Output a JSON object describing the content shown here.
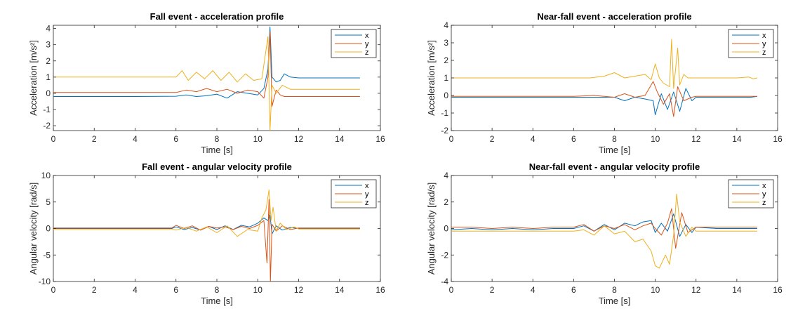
{
  "chart_data": [
    {
      "type": "line",
      "title": "Fall event - acceleration profile",
      "xlabel": "Time [s]",
      "ylabel": "Acceleration [m/s²]",
      "xlim": [
        0,
        16
      ],
      "ylim": [
        -2.3,
        4.2
      ],
      "xticks": [
        0,
        2,
        4,
        6,
        8,
        10,
        12,
        14,
        16
      ],
      "yticks": [
        -2,
        -1,
        0,
        1,
        2,
        3,
        4
      ],
      "legend": "top-right",
      "series": [
        {
          "name": "x",
          "color": "#0072BD",
          "x": [
            0,
            2,
            4,
            6,
            6.5,
            7,
            7.5,
            8,
            8.5,
            9,
            9.5,
            10,
            10.3,
            10.5,
            10.6,
            10.7,
            10.9,
            11.1,
            11.3,
            11.6,
            12,
            13,
            14,
            15
          ],
          "y": [
            -0.2,
            -0.2,
            -0.2,
            -0.18,
            -0.1,
            -0.2,
            -0.15,
            -0.05,
            -0.3,
            0.1,
            0.0,
            -0.1,
            0.3,
            1.5,
            4.1,
            1.0,
            0.7,
            0.8,
            1.2,
            1.0,
            0.95,
            0.95,
            0.95,
            0.95
          ]
        },
        {
          "name": "y",
          "color": "#D95319",
          "x": [
            0,
            2,
            4,
            6,
            6.5,
            7,
            7.5,
            8,
            8.5,
            9,
            9.5,
            10,
            10.3,
            10.5,
            10.6,
            10.7,
            10.9,
            11.1,
            11.3,
            11.6,
            12,
            13,
            14,
            15
          ],
          "y": [
            0.05,
            0.05,
            0.05,
            0.05,
            0.2,
            0.1,
            0.3,
            0.1,
            0.25,
            0.0,
            0.2,
            0.1,
            -0.3,
            1.0,
            3.8,
            -0.8,
            0.2,
            -0.1,
            -0.2,
            -0.2,
            -0.2,
            -0.2,
            -0.2,
            -0.2
          ]
        },
        {
          "name": "z",
          "color": "#EDB120",
          "x": [
            0,
            2,
            4,
            6,
            6.3,
            6.6,
            7,
            7.4,
            7.8,
            8.2,
            8.6,
            9,
            9.4,
            9.8,
            10.2,
            10.5,
            10.6,
            10.7,
            10.9,
            11.2,
            11.6,
            12,
            13,
            14,
            15
          ],
          "y": [
            1.0,
            1.0,
            1.0,
            1.0,
            1.4,
            0.8,
            1.3,
            0.9,
            1.4,
            0.8,
            1.3,
            0.7,
            1.2,
            0.8,
            0.9,
            3.5,
            -2.3,
            0.5,
            0.0,
            0.5,
            0.25,
            0.25,
            0.25,
            0.25,
            0.25
          ]
        }
      ]
    },
    {
      "type": "line",
      "title": "Near-fall event - acceleration profile",
      "xlabel": "Time [s]",
      "ylabel": "Acceleration [m/s²]",
      "xlim": [
        0,
        16
      ],
      "ylim": [
        -2,
        4
      ],
      "xticks": [
        0,
        2,
        4,
        6,
        8,
        10,
        12,
        14,
        16
      ],
      "yticks": [
        -2,
        -1,
        0,
        1,
        2,
        3,
        4
      ],
      "legend": "top-right",
      "series": [
        {
          "name": "x",
          "color": "#0072BD",
          "x": [
            0,
            1,
            2,
            4,
            6,
            7,
            8,
            8.5,
            9,
            9.5,
            9.9,
            10.0,
            10.3,
            10.6,
            10.9,
            11.2,
            11.5,
            11.8,
            12,
            13,
            14,
            14.7,
            15
          ],
          "y": [
            -0.1,
            -0.1,
            -0.1,
            -0.1,
            -0.1,
            -0.1,
            -0.1,
            -0.3,
            -0.1,
            -0.2,
            -0.3,
            -1.1,
            0.1,
            -0.8,
            0.2,
            -0.9,
            0.4,
            -0.3,
            -0.1,
            -0.1,
            -0.1,
            -0.1,
            -0.05
          ]
        },
        {
          "name": "y",
          "color": "#D95319",
          "x": [
            0,
            1,
            2,
            4,
            6,
            7,
            8,
            8.5,
            9,
            9.5,
            9.9,
            10.1,
            10.4,
            10.7,
            10.9,
            11.1,
            11.4,
            11.8,
            12,
            13,
            14,
            14.7,
            15
          ],
          "y": [
            -0.05,
            -0.05,
            -0.05,
            -0.05,
            -0.05,
            0.0,
            -0.1,
            0.1,
            -0.1,
            0.0,
            0.8,
            0.2,
            -0.5,
            0.1,
            -1.2,
            0.5,
            -0.3,
            -0.1,
            -0.05,
            -0.05,
            -0.05,
            -0.05,
            -0.05
          ]
        },
        {
          "name": "z",
          "color": "#EDB120",
          "x": [
            0,
            2,
            4,
            6,
            6.8,
            7.5,
            8,
            8.5,
            9,
            9.5,
            9.8,
            10.0,
            10.2,
            10.4,
            10.7,
            10.8,
            10.9,
            11.1,
            11.2,
            11.4,
            11.6,
            12,
            13,
            14,
            14.6,
            14.8,
            15
          ],
          "y": [
            1.0,
            1.0,
            1.0,
            1.0,
            1.0,
            1.1,
            1.3,
            1.0,
            1.1,
            1.2,
            0.9,
            1.8,
            1.0,
            0.7,
            0.5,
            3.2,
            0.4,
            2.7,
            0.6,
            1.2,
            1.0,
            1.0,
            1.0,
            1.0,
            1.05,
            0.95,
            1.0
          ]
        }
      ]
    },
    {
      "type": "line",
      "title": "Fall event - angular velocity profile",
      "xlabel": "Time [s]",
      "ylabel": "Angular velocity [rad/s]",
      "xlim": [
        0,
        16
      ],
      "ylim": [
        -10,
        10
      ],
      "xticks": [
        0,
        2,
        4,
        6,
        8,
        10,
        12,
        14,
        16
      ],
      "yticks": [
        -10,
        -5,
        0,
        5,
        10
      ],
      "legend": "top-right",
      "series": [
        {
          "name": "x",
          "color": "#0072BD",
          "x": [
            0,
            2,
            4,
            5.8,
            6,
            6.4,
            6.8,
            7.2,
            7.6,
            8,
            8.4,
            8.8,
            9.2,
            9.6,
            10,
            10.3,
            10.5,
            10.6,
            10.7,
            10.9,
            11.2,
            11.6,
            12,
            13,
            14,
            15
          ],
          "y": [
            0.0,
            0.0,
            0.0,
            0.0,
            0.3,
            -0.2,
            0.2,
            -0.3,
            0.4,
            -0.2,
            0.5,
            -0.2,
            0.6,
            0.3,
            1.0,
            2.0,
            1.5,
            2.5,
            -1.0,
            0.5,
            -0.3,
            0.2,
            0.0,
            0.0,
            0.0,
            0.0
          ]
        },
        {
          "name": "y",
          "color": "#D95319",
          "x": [
            0,
            2,
            4,
            5.8,
            6,
            6.4,
            6.8,
            7.2,
            7.6,
            8,
            8.4,
            8.8,
            9.2,
            9.6,
            10,
            10.3,
            10.45,
            10.55,
            10.62,
            10.7,
            10.9,
            11.2,
            11.6,
            12,
            13,
            14,
            15
          ],
          "y": [
            0.1,
            0.1,
            0.1,
            0.1,
            0.6,
            0.0,
            0.5,
            -0.3,
            0.4,
            0.1,
            0.3,
            -0.2,
            0.4,
            0.0,
            0.6,
            1.5,
            -6.5,
            5.5,
            -10.0,
            0.8,
            -0.5,
            0.5,
            -0.2,
            0.1,
            0.1,
            0.1,
            0.1
          ]
        },
        {
          "name": "z",
          "color": "#EDB120",
          "x": [
            0,
            2,
            4,
            5.8,
            6,
            6.5,
            7,
            7.5,
            8,
            8.5,
            9,
            9.5,
            10,
            10.2,
            10.4,
            10.55,
            10.65,
            10.75,
            10.9,
            11.1,
            11.4,
            11.8,
            12,
            13,
            14,
            15
          ],
          "y": [
            -0.2,
            -0.2,
            -0.2,
            -0.2,
            -0.3,
            0.2,
            -0.5,
            0.3,
            -0.8,
            0.5,
            -1.5,
            -0.2,
            -0.5,
            2.0,
            3.5,
            7.3,
            1.5,
            4.0,
            -0.5,
            1.0,
            -0.2,
            0.3,
            -0.1,
            -0.1,
            -0.1,
            -0.1
          ]
        }
      ]
    },
    {
      "type": "line",
      "title": "Near-fall event - angular velocity profile",
      "xlabel": "Time [s]",
      "ylabel": "Angular velocity [rad/s]",
      "xlim": [
        0,
        16
      ],
      "ylim": [
        -4,
        4
      ],
      "xticks": [
        0,
        2,
        4,
        6,
        8,
        10,
        12,
        14,
        16
      ],
      "yticks": [
        -4,
        -2,
        0,
        2,
        4
      ],
      "legend": "top-right",
      "series": [
        {
          "name": "x",
          "color": "#0072BD",
          "x": [
            0,
            1,
            2,
            3,
            4,
            5,
            6,
            6.5,
            7,
            7.5,
            8,
            8.5,
            9,
            9.4,
            9.8,
            10,
            10.3,
            10.6,
            10.9,
            11.2,
            11.5,
            11.8,
            12,
            13,
            14,
            15
          ],
          "y": [
            -0.1,
            0.0,
            -0.1,
            0.0,
            -0.1,
            0.0,
            0.0,
            0.2,
            -0.2,
            0.3,
            -0.1,
            0.4,
            0.2,
            0.5,
            0.6,
            -0.3,
            0.4,
            -0.2,
            1.1,
            -0.6,
            0.3,
            -0.3,
            0.1,
            0.0,
            0.0,
            0.0
          ]
        },
        {
          "name": "y",
          "color": "#D95319",
          "x": [
            0,
            1,
            2,
            3,
            4,
            5,
            6,
            6.5,
            7,
            7.5,
            8,
            8.5,
            9,
            9.4,
            9.8,
            10,
            10.3,
            10.6,
            10.8,
            11.0,
            11.3,
            11.6,
            12,
            13,
            14,
            15
          ],
          "y": [
            0.1,
            0.1,
            0.0,
            0.1,
            0.0,
            0.1,
            0.1,
            0.3,
            -0.2,
            0.2,
            0.0,
            0.3,
            -0.1,
            0.2,
            0.4,
            0.0,
            -0.5,
            0.4,
            1.5,
            -1.5,
            1.2,
            -0.3,
            0.1,
            0.1,
            0.1,
            0.1
          ]
        },
        {
          "name": "z",
          "color": "#EDB120",
          "x": [
            0,
            1,
            2,
            3,
            4,
            5,
            6,
            6.5,
            7,
            7.5,
            8,
            8.5,
            9,
            9.4,
            9.8,
            10,
            10.2,
            10.5,
            10.7,
            10.9,
            11.05,
            11.2,
            11.5,
            11.8,
            12,
            13,
            14,
            15
          ],
          "y": [
            -0.2,
            -0.2,
            -0.2,
            -0.2,
            -0.2,
            -0.2,
            -0.2,
            -0.1,
            -0.5,
            0.2,
            -0.4,
            -0.2,
            -1.0,
            -0.8,
            -1.7,
            -2.8,
            -3.0,
            -2.0,
            -2.7,
            -0.5,
            2.6,
            0.5,
            -0.6,
            0.1,
            -0.2,
            -0.2,
            -0.2,
            -0.2
          ]
        }
      ]
    }
  ]
}
